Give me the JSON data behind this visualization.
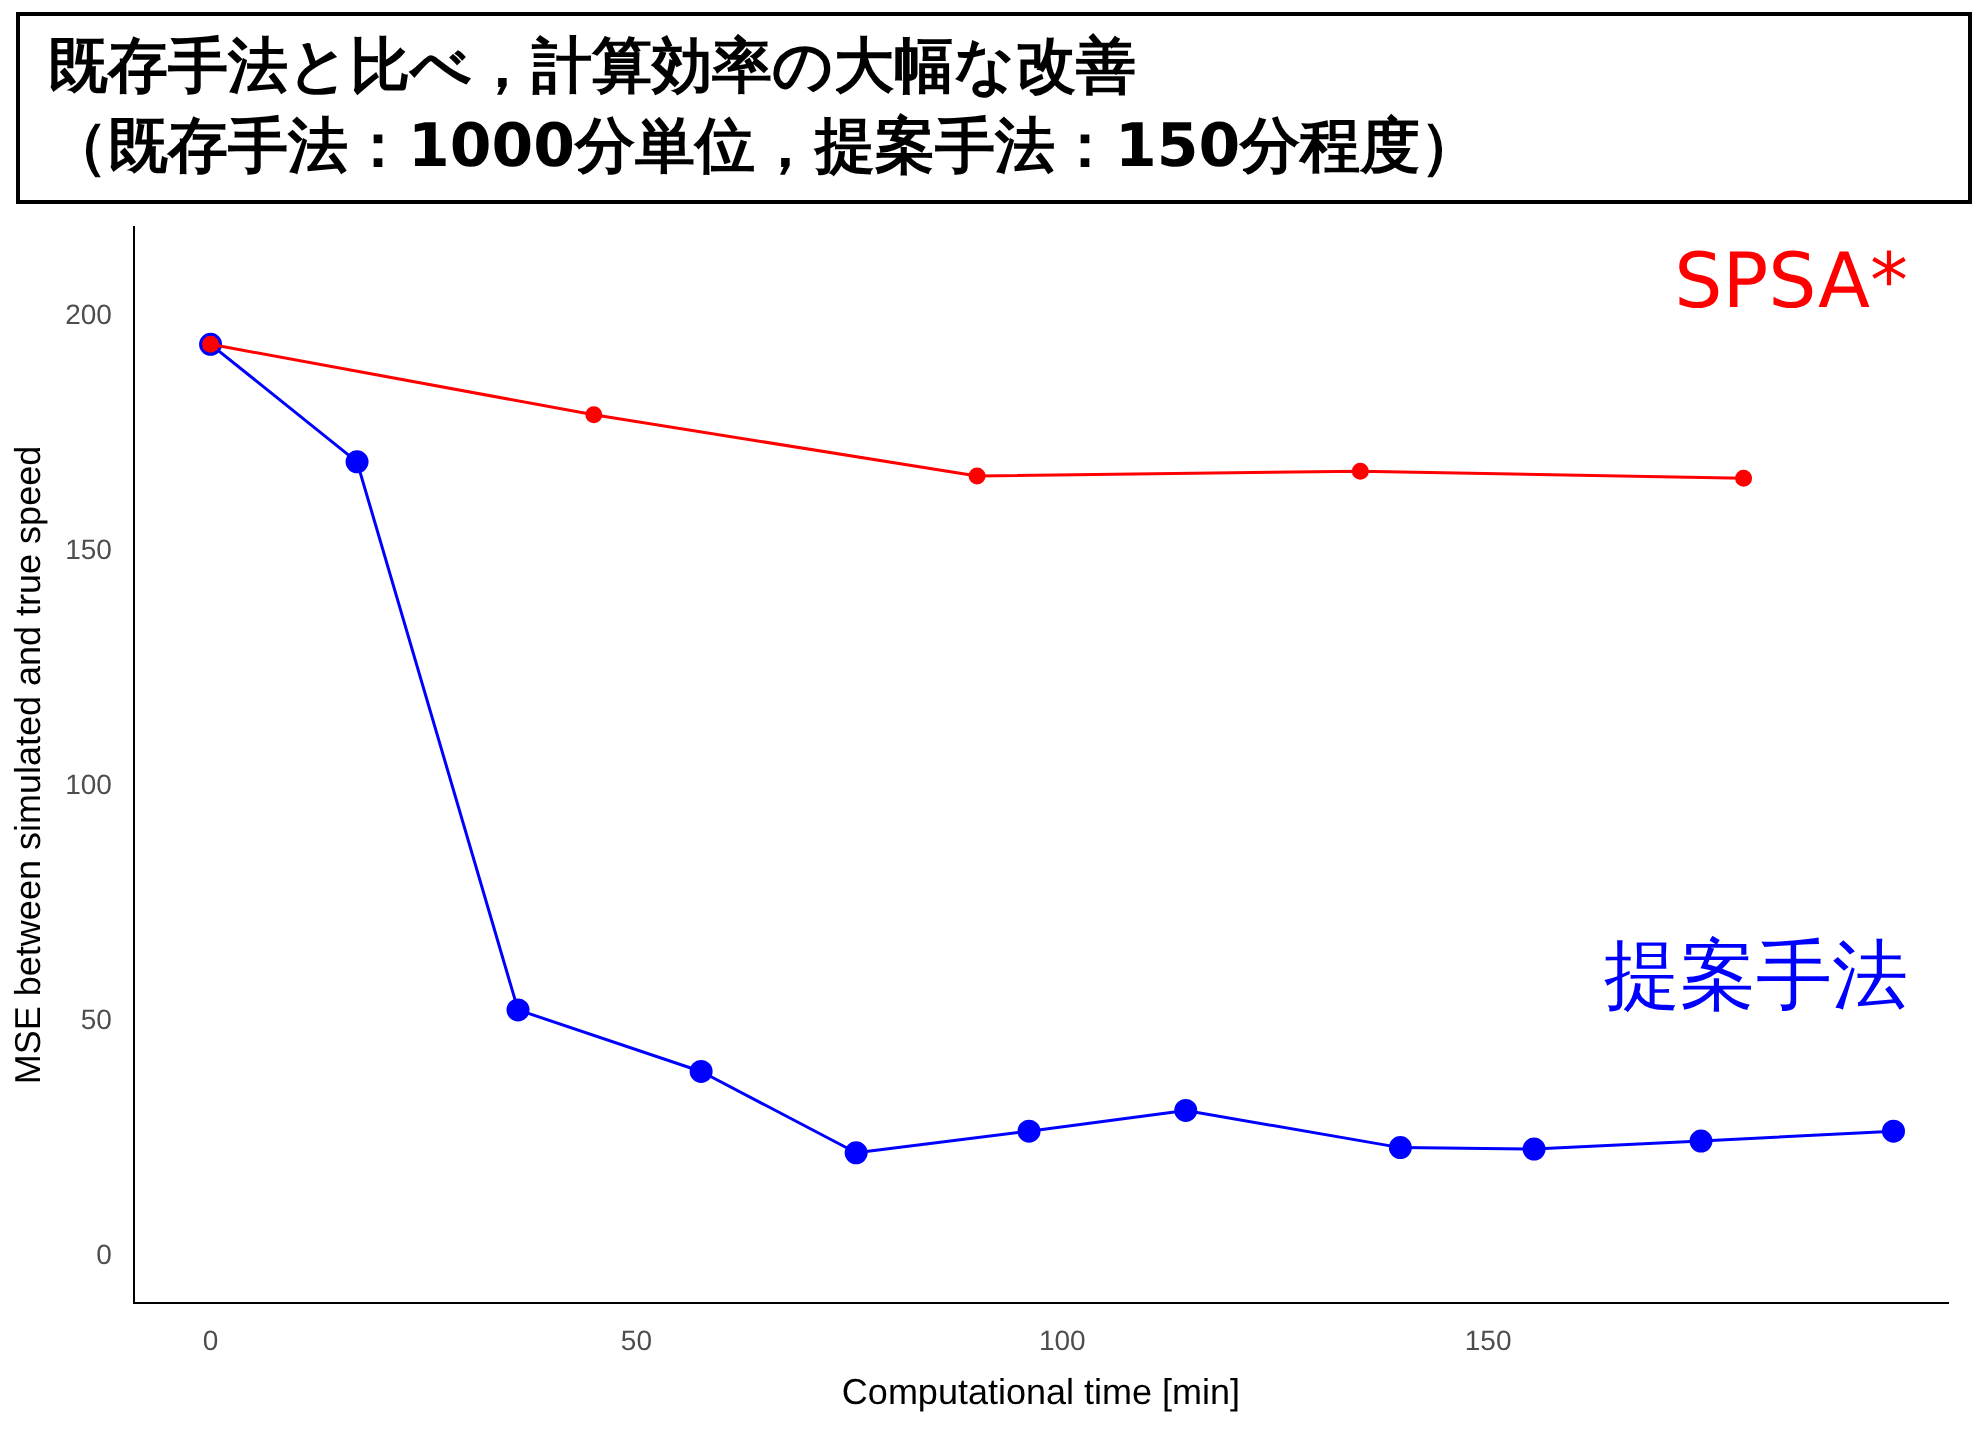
{
  "chart_data": {
    "type": "line",
    "xlabel": "Computational time [min]",
    "ylabel": "MSE between simulated and true speed",
    "annotations": [
      "既存手法と比べ，計算効率の大幅な改善",
      "（既存手法：1000分単位，提案手法：150分程度）"
    ],
    "series": [
      {
        "name": "SPSA*",
        "color": "#ff0000",
        "x": [
          0,
          45,
          90,
          135,
          180
        ],
        "values": [
          194,
          179,
          166,
          167,
          165.5
        ]
      },
      {
        "name": "提案手法",
        "color": "#0000ff",
        "x": [
          0,
          17.2,
          36.1,
          57.6,
          75.8,
          96.1,
          114.5,
          139.7,
          155.4,
          175,
          197.6
        ],
        "values": [
          194,
          169,
          52.4,
          39.3,
          22,
          26.6,
          31,
          23.1,
          22.8,
          24.5,
          26.6
        ]
      }
    ],
    "xlim": [
      -9,
      204
    ],
    "ylim": [
      -10,
      219
    ],
    "xticks": [
      0,
      50,
      100,
      150
    ],
    "yticks": [
      0,
      50,
      100,
      150,
      200
    ],
    "grid": false,
    "legend": false,
    "marker": "circle",
    "line_style": "solid"
  }
}
